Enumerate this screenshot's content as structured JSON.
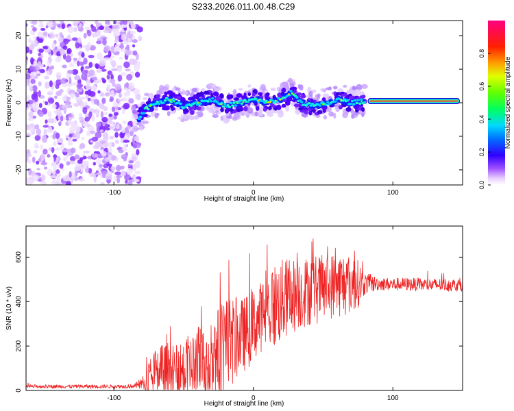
{
  "title": "S233.2026.011.00.48.C29",
  "chart_data": [
    {
      "type": "heatmap",
      "name": "spectrogram",
      "xlabel": "Height of straight line (km)",
      "ylabel": "Frequency (Hz)",
      "xlim": [
        -163,
        150
      ],
      "ylim": [
        -24.5,
        24.5
      ],
      "xticks": [
        -100,
        0,
        100
      ],
      "yticks": [
        -20,
        -10,
        0,
        10,
        20
      ],
      "noise_region_x": [
        -163,
        -82
      ],
      "signal_track": [
        {
          "x": -82,
          "f": -5
        },
        {
          "x": -78,
          "f": -2
        },
        {
          "x": -70,
          "f": 0
        },
        {
          "x": -60,
          "f": 1
        },
        {
          "x": -50,
          "f": -1
        },
        {
          "x": -40,
          "f": 0
        },
        {
          "x": -30,
          "f": 1
        },
        {
          "x": -20,
          "f": -1
        },
        {
          "x": -10,
          "f": 0
        },
        {
          "x": 0,
          "f": 1
        },
        {
          "x": 10,
          "f": 0
        },
        {
          "x": 20,
          "f": 1
        },
        {
          "x": 27,
          "f": 3
        },
        {
          "x": 35,
          "f": 0
        },
        {
          "x": 45,
          "f": -1
        },
        {
          "x": 55,
          "f": 0
        },
        {
          "x": 62,
          "f": 1
        },
        {
          "x": 70,
          "f": 0
        },
        {
          "x": 80,
          "f": 0.5
        }
      ],
      "steady_line": {
        "x_start": 82,
        "x_end": 148,
        "f": 0.5
      },
      "colorbar": {
        "label": "Normalized spectral amplitude",
        "ticks": [
          0.0,
          0.2,
          0.4,
          0.6,
          0.8
        ],
        "range": [
          0,
          1
        ]
      }
    },
    {
      "type": "line",
      "name": "snr",
      "xlabel": "Height of straight line (km)",
      "ylabel": "SNR (10 * v/v)",
      "xlim": [
        -163,
        150
      ],
      "ylim": [
        0,
        740
      ],
      "xticks": [
        -100,
        0,
        100
      ],
      "yticks": [
        0,
        200,
        400,
        600
      ],
      "color": "#ee2222",
      "series": [
        {
          "name": "SNR",
          "x": [
            -163,
            -140,
            -120,
            -100,
            -85,
            -78,
            -72,
            -66,
            -60,
            -55,
            -50,
            -45,
            -40,
            -35,
            -30,
            -25,
            -20,
            -15,
            -10,
            -5,
            0,
            5,
            10,
            15,
            20,
            25,
            30,
            35,
            40,
            45,
            50,
            55,
            60,
            65,
            70,
            75,
            80,
            90,
            100,
            110,
            120,
            130,
            140,
            150
          ],
          "baseline": [
            18,
            18,
            18,
            18,
            20,
            35,
            70,
            80,
            85,
            90,
            100,
            110,
            130,
            120,
            150,
            160,
            190,
            220,
            240,
            260,
            290,
            330,
            360,
            380,
            400,
            420,
            430,
            440,
            450,
            455,
            460,
            470,
            475,
            480,
            480,
            480,
            480,
            480,
            478,
            478,
            476,
            475,
            475,
            475
          ],
          "amplitude": [
            8,
            8,
            8,
            8,
            10,
            40,
            120,
            130,
            140,
            120,
            130,
            150,
            170,
            160,
            200,
            220,
            240,
            200,
            170,
            170,
            170,
            160,
            180,
            200,
            190,
            180,
            170,
            160,
            160,
            160,
            150,
            150,
            150,
            150,
            140,
            110,
            50,
            30,
            30,
            30,
            30,
            30,
            30,
            30
          ]
        }
      ]
    }
  ]
}
